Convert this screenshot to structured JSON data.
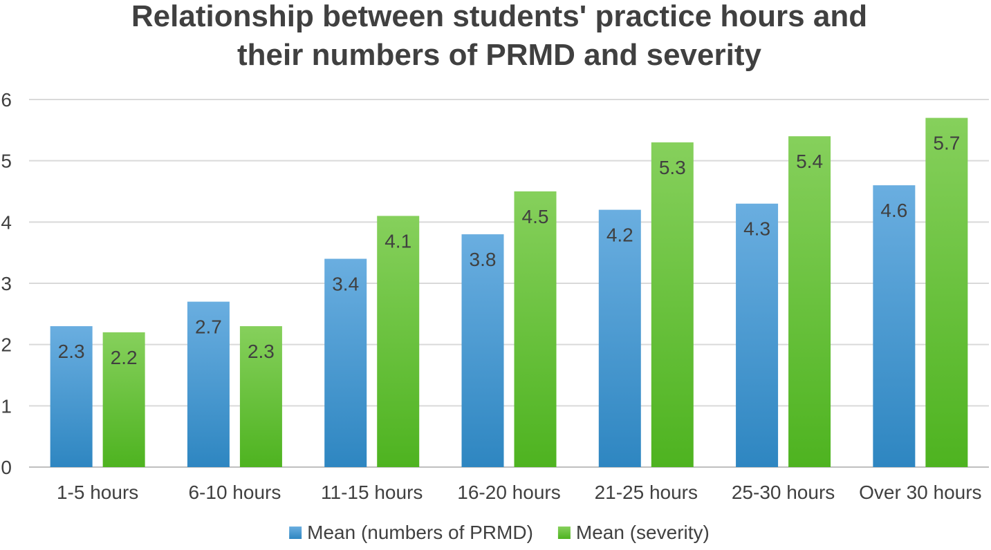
{
  "chart_data": {
    "type": "bar",
    "title": "Relationship between students' practice hours and their numbers of PRMD and severity",
    "title_lines": [
      "Relationship between students' practice hours and",
      "their numbers of PRMD and severity"
    ],
    "categories": [
      "1-5 hours",
      "6-10 hours",
      "11-15 hours",
      "16-20 hours",
      "21-25 hours",
      "25-30 hours",
      "Over 30 hours"
    ],
    "series": [
      {
        "name": "Mean (numbers of PRMD)",
        "values": [
          2.3,
          2.7,
          3.4,
          3.8,
          4.2,
          4.3,
          4.6
        ],
        "color_top": "#6aaee0",
        "color_bottom": "#2e86c1"
      },
      {
        "name": "Mean (severity)",
        "values": [
          2.2,
          2.3,
          4.1,
          4.5,
          5.3,
          5.4,
          5.7
        ],
        "color_top": "#86d05c",
        "color_bottom": "#4eb320"
      }
    ],
    "ylim": [
      0,
      6
    ],
    "yticks": [
      "0",
      "1",
      "2",
      "3",
      "4",
      "5",
      "6"
    ],
    "xlabel": "",
    "ylabel": "",
    "grid": true,
    "legend_position": "bottom",
    "data_labels": true
  }
}
